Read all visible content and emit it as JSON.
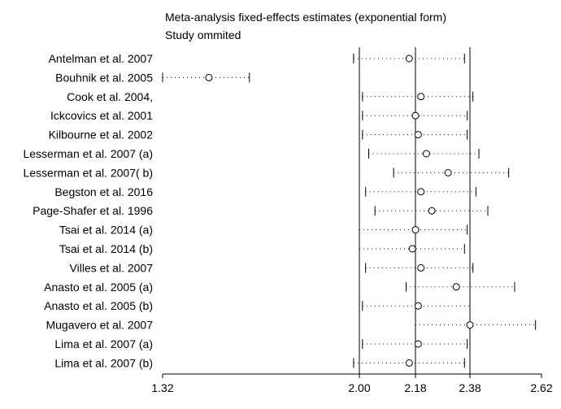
{
  "chart_data": {
    "type": "forest",
    "title": "Meta-analysis fixed-effects estimates (exponential form)",
    "subtitle": "Study ommited",
    "x_ticks": [
      1.32,
      2.0,
      2.18,
      2.38,
      2.62
    ],
    "x_tick_labels": [
      "1.32",
      "2.00",
      "2.18",
      "2.38",
      "2.62"
    ],
    "xlim": [
      1.32,
      2.62
    ],
    "reference_lines": [
      2.0,
      2.18,
      2.38
    ],
    "studies": [
      {
        "label": "Antelman et al. 2007",
        "estimate": 2.16,
        "lower": 1.98,
        "upper": 2.36
      },
      {
        "label": "Bouhnik et al. 2005",
        "estimate": 1.48,
        "lower": 1.32,
        "upper": 1.62
      },
      {
        "label": "Cook et al. 2004,",
        "estimate": 2.2,
        "lower": 2.01,
        "upper": 2.39
      },
      {
        "label": "Ickcovics et al. 2001",
        "estimate": 2.18,
        "lower": 2.01,
        "upper": 2.37
      },
      {
        "label": "Kilbourne et al. 2002",
        "estimate": 2.19,
        "lower": 2.01,
        "upper": 2.37
      },
      {
        "label": "Lesserman et al. 2007 (a)",
        "estimate": 2.22,
        "lower": 2.03,
        "upper": 2.41
      },
      {
        "label": "Lesserman et al. 2007( b)",
        "estimate": 2.3,
        "lower": 2.11,
        "upper": 2.51
      },
      {
        "label": "Begston et al. 2016",
        "estimate": 2.2,
        "lower": 2.02,
        "upper": 2.4
      },
      {
        "label": "Page-Shafer et al. 1996",
        "estimate": 2.24,
        "lower": 2.05,
        "upper": 2.44
      },
      {
        "label": "Tsai et al. 2014 (a)",
        "estimate": 2.18,
        "lower": 2.0,
        "upper": 2.37
      },
      {
        "label": "Tsai et al. 2014 (b)",
        "estimate": 2.17,
        "lower": 2.0,
        "upper": 2.36
      },
      {
        "label": "Villes et al. 2007",
        "estimate": 2.2,
        "lower": 2.02,
        "upper": 2.39
      },
      {
        "label": "Anasto et al. 2005 (a)",
        "estimate": 2.33,
        "lower": 2.15,
        "upper": 2.53
      },
      {
        "label": "Anasto et al. 2005 (b)",
        "estimate": 2.19,
        "lower": 2.01,
        "upper": 2.38
      },
      {
        "label": "Mugavero et al. 2007",
        "estimate": 2.38,
        "lower": 2.18,
        "upper": 2.6
      },
      {
        "label": "Lima et al. 2007 (a)",
        "estimate": 2.19,
        "lower": 2.01,
        "upper": 2.37
      },
      {
        "label": "Lima et al. 2007 (b)",
        "estimate": 2.16,
        "lower": 1.98,
        "upper": 2.36
      }
    ]
  }
}
